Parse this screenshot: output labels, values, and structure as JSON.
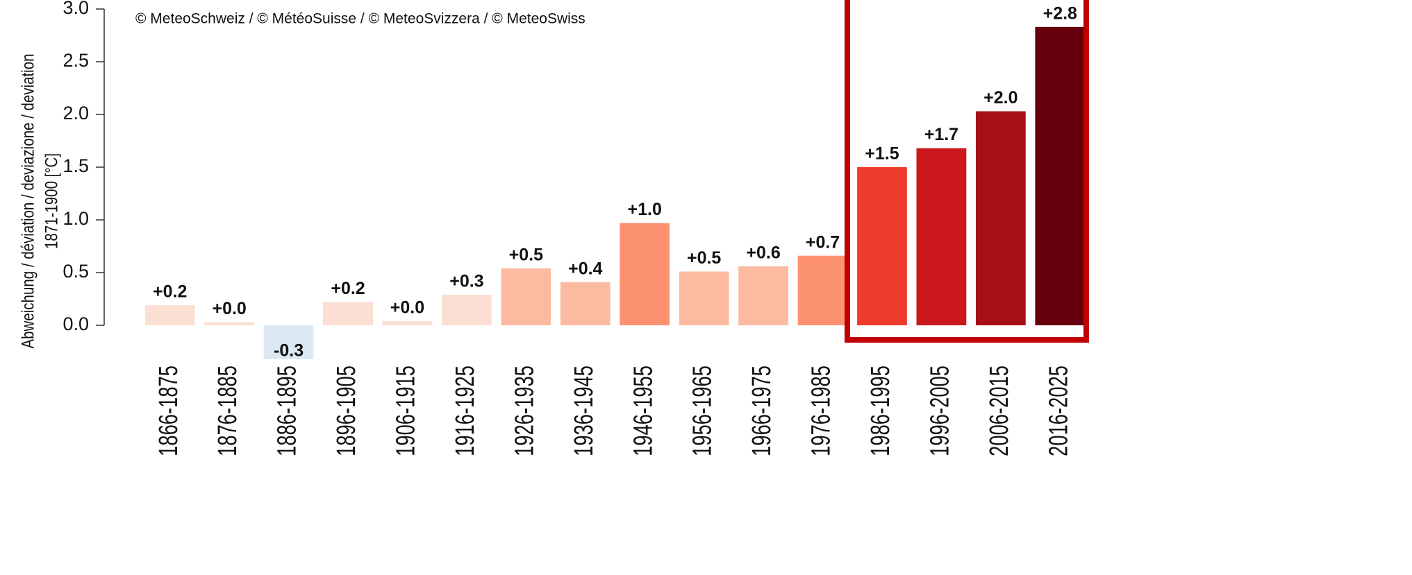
{
  "chart_data": {
    "type": "bar",
    "annotation": "© MeteoSchweiz / © MétéoSuisse / © MeteoSvizzera / © MeteoSwiss",
    "y_label": [
      "Abweichung / déviation / deviazione / deviation",
      "1871-1900 [°C]"
    ],
    "categories": [
      "1866-1875",
      "1876-1885",
      "1886-1895",
      "1896-1905",
      "1906-1915",
      "1916-1925",
      "1926-1935",
      "1936-1945",
      "1946-1955",
      "1956-1965",
      "1966-1975",
      "1976-1985",
      "1986-1995",
      "1996-2005",
      "2006-2015",
      "2016-2025"
    ],
    "values": [
      0.19,
      0.03,
      -0.32,
      0.22,
      0.04,
      0.29,
      0.54,
      0.41,
      0.97,
      0.51,
      0.56,
      0.66,
      1.5,
      1.68,
      2.03,
      2.83
    ],
    "value_labels": [
      "+0.2",
      "+0.0",
      "-0.3",
      "+0.2",
      "+0.0",
      "+0.3",
      "+0.5",
      "+0.4",
      "+1.0",
      "+0.5",
      "+0.6",
      "+0.7",
      "+1.5",
      "+1.7",
      "+2.0",
      "+2.8"
    ],
    "colors": [
      "#fbdfd2",
      "#fbdfd2",
      "#dce8f4",
      "#fbdfd2",
      "#fbdfd2",
      "#fbdfd2",
      "#fcbba1",
      "#fcbba1",
      "#fc9272",
      "#fcbba1",
      "#fcbba1",
      "#fc9272",
      "#ef3b2c",
      "#cb181d",
      "#a50f15",
      "#67000d"
    ],
    "ylim": [
      -0.4,
      3.0
    ],
    "yticks": [
      {
        "value": 0,
        "label": "0.0"
      },
      0.5,
      {
        "value": 1,
        "label": "1.0"
      },
      1.5,
      {
        "value": 2,
        "label": "2.0"
      },
      2.5,
      {
        "value": 3,
        "label": "3.0"
      }
    ]
  }
}
